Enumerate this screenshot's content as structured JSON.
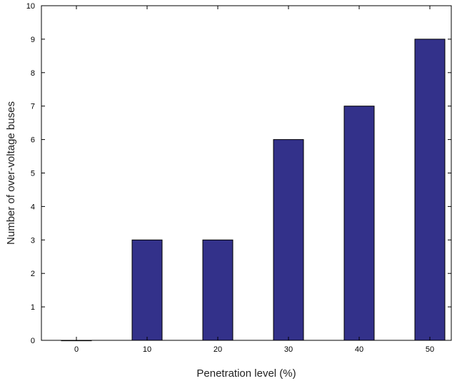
{
  "chart_data": {
    "type": "bar",
    "categories": [
      "0",
      "10",
      "20",
      "30",
      "40",
      "50"
    ],
    "values": [
      0,
      3,
      3,
      6,
      7,
      9
    ],
    "xlabel": "Penetration level (%)",
    "ylabel": "Number of over-voltage buses",
    "ylim": [
      0,
      10
    ],
    "yticks": [
      "0",
      "1",
      "2",
      "3",
      "4",
      "5",
      "6",
      "7",
      "8",
      "9",
      "10"
    ],
    "bar_color": "#33318a",
    "grid": false
  }
}
